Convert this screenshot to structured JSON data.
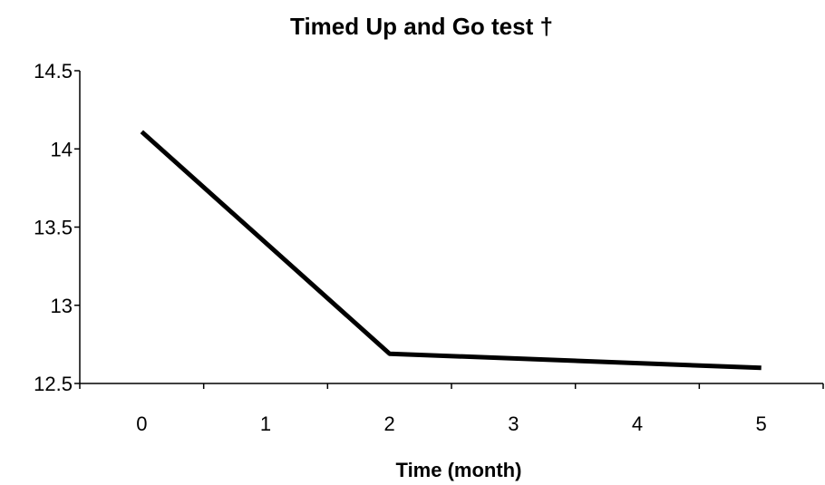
{
  "chart_data": {
    "type": "line",
    "title": "Timed Up and Go test †",
    "xlabel": "Time (month)",
    "ylabel": "",
    "x": [
      0,
      2,
      5
    ],
    "xticks": [
      "0",
      "1",
      "2",
      "3",
      "4",
      "5"
    ],
    "xlim": [
      -0.5,
      5.5
    ],
    "ylim": [
      12.5,
      14.5
    ],
    "yticks": [
      "12.5",
      "13",
      "13.5",
      "14",
      "14.5"
    ],
    "series": [
      {
        "values": [
          14.11,
          12.69,
          12.6
        ],
        "color": "#000000"
      }
    ],
    "grid": false,
    "legend": "none"
  }
}
